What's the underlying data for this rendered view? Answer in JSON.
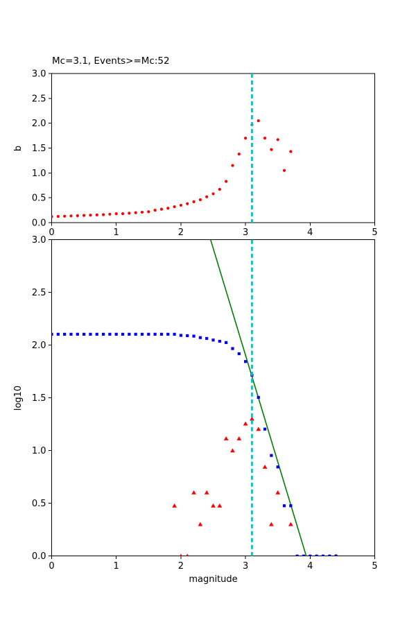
{
  "title": "Mc=3.1, Events>=Mc:52",
  "colors": {
    "background": "#ffffff",
    "axis": "#000000",
    "b_value_red": "#ff0000",
    "cumulative_blue": "#0000ff",
    "fit_green": "#008000",
    "mc_cyan": "#16bcc0"
  },
  "mc": 3.1,
  "events_ge_mc": 52,
  "chart_data": [
    {
      "type": "scatter",
      "name": "b-value-vs-cutoff-magnitude",
      "title": "Mc=3.1, Events>=Mc:52",
      "xlabel": "",
      "ylabel": "b",
      "xlim": [
        0,
        5
      ],
      "ylim": [
        0,
        3
      ],
      "grid": false,
      "xticks": [
        0,
        1,
        2,
        3,
        4,
        5
      ],
      "xtick_labels": [
        "0",
        "1",
        "2",
        "3",
        "4",
        "5"
      ],
      "yticks": [
        0.0,
        0.5,
        1.0,
        1.5,
        2.0,
        2.5,
        3.0
      ],
      "ytick_labels": [
        "0.0",
        "0.5",
        "1.0",
        "1.5",
        "2.0",
        "2.5",
        "3.0"
      ],
      "series": [
        {
          "name": "b-values",
          "type": "scatter",
          "marker": "circle",
          "color": "#ff0000",
          "x": [
            0.0,
            0.1,
            0.2,
            0.3,
            0.4,
            0.5,
            0.6,
            0.7,
            0.8,
            0.9,
            1.0,
            1.1,
            1.2,
            1.3,
            1.4,
            1.5,
            1.6,
            1.7,
            1.8,
            1.9,
            2.0,
            2.1,
            2.2,
            2.3,
            2.4,
            2.5,
            2.6,
            2.7,
            2.8,
            2.9,
            3.0,
            3.1,
            3.2,
            3.3,
            3.4,
            3.5,
            3.6,
            3.7
          ],
          "y": [
            0.12,
            0.125,
            0.13,
            0.135,
            0.14,
            0.145,
            0.15,
            0.155,
            0.16,
            0.17,
            0.18,
            0.18,
            0.19,
            0.2,
            0.21,
            0.22,
            0.25,
            0.27,
            0.29,
            0.32,
            0.35,
            0.38,
            0.42,
            0.46,
            0.52,
            0.58,
            0.67,
            0.83,
            1.15,
            1.38,
            1.7,
            1.97,
            2.05,
            1.7,
            1.47,
            1.67,
            1.05,
            1.43
          ]
        },
        {
          "name": "mc-cutoff-line",
          "type": "vline",
          "x": 3.1,
          "color": "#16bcc0",
          "style": "dashed"
        }
      ]
    },
    {
      "type": "scatter",
      "name": "frequency-magnitude-distribution",
      "title": "",
      "xlabel": "magnitude",
      "ylabel": "log10",
      "xlim": [
        0,
        5
      ],
      "ylim": [
        0,
        3
      ],
      "grid": false,
      "xticks": [
        0,
        1,
        2,
        3,
        4,
        5
      ],
      "xtick_labels": [
        "0",
        "1",
        "2",
        "3",
        "4",
        "5"
      ],
      "yticks": [
        0.0,
        0.5,
        1.0,
        1.5,
        2.0,
        2.5,
        3.0
      ],
      "ytick_labels": [
        "0.0",
        "0.5",
        "1.0",
        "1.5",
        "2.0",
        "2.5",
        "3.0"
      ],
      "series": [
        {
          "name": "gr-fit-line",
          "type": "line",
          "color": "#008000",
          "x": [
            2.46,
            3.94
          ],
          "y": [
            3.0,
            0.0
          ]
        },
        {
          "name": "noncumulative-bin-counts",
          "type": "scatter",
          "marker": "triangle",
          "color": "#ff0000",
          "x": [
            1.9,
            2.0,
            2.1,
            2.2,
            2.3,
            2.4,
            2.5,
            2.6,
            2.7,
            2.8,
            2.9,
            3.0,
            3.1,
            3.2,
            3.3,
            3.4,
            3.5,
            3.7,
            4.4
          ],
          "y": [
            0.477,
            0.0,
            0.0,
            0.602,
            0.301,
            0.602,
            0.477,
            0.477,
            1.114,
            1.0,
            1.114,
            1.255,
            1.301,
            1.204,
            0.845,
            0.301,
            0.602,
            0.301,
            0.0
          ]
        },
        {
          "name": "cumulative-counts",
          "type": "scatter",
          "marker": "square",
          "color": "#0000ff",
          "x": [
            0.0,
            0.1,
            0.2,
            0.3,
            0.4,
            0.5,
            0.6,
            0.7,
            0.8,
            0.9,
            1.0,
            1.1,
            1.2,
            1.3,
            1.4,
            1.5,
            1.6,
            1.7,
            1.8,
            1.9,
            2.0,
            2.1,
            2.2,
            2.3,
            2.4,
            2.5,
            2.6,
            2.7,
            2.8,
            2.9,
            3.0,
            3.1,
            3.2,
            3.3,
            3.4,
            3.5,
            3.6,
            3.7,
            3.8,
            3.9,
            4.0,
            4.1,
            4.2,
            4.3,
            4.4
          ],
          "y": [
            2.104,
            2.104,
            2.104,
            2.104,
            2.104,
            2.104,
            2.104,
            2.104,
            2.104,
            2.104,
            2.104,
            2.104,
            2.104,
            2.104,
            2.104,
            2.104,
            2.104,
            2.104,
            2.104,
            2.104,
            2.093,
            2.09,
            2.086,
            2.072,
            2.064,
            2.049,
            2.037,
            2.025,
            1.968,
            1.919,
            1.845,
            1.716,
            1.505,
            1.204,
            0.954,
            0.845,
            0.477,
            0.477,
            0.0,
            0.0,
            0.0,
            0.0,
            0.0,
            0.0,
            0.0
          ]
        },
        {
          "name": "mc-cutoff-line",
          "type": "vline",
          "x": 3.1,
          "color": "#16bcc0",
          "style": "dashed"
        }
      ]
    }
  ]
}
